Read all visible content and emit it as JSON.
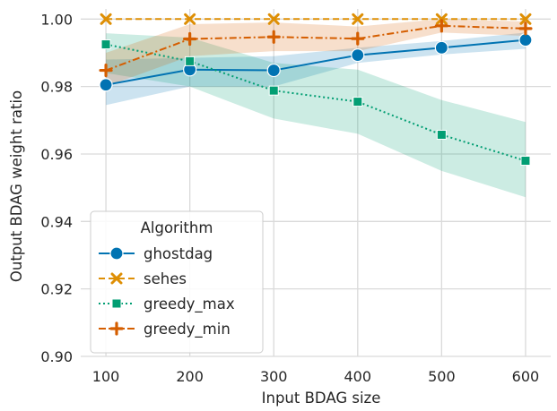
{
  "chart_data": {
    "type": "line",
    "xlabel": "Input BDAG size",
    "ylabel": "Output BDAG weight ratio",
    "x": [
      100,
      200,
      300,
      400,
      500,
      600
    ],
    "xlim": [
      70,
      630
    ],
    "ylim": [
      0.9,
      1.003
    ],
    "xticks": [
      100,
      200,
      300,
      400,
      500,
      600
    ],
    "yticks": [
      0.9,
      0.92,
      0.94,
      0.96,
      0.98,
      1.0
    ],
    "xtick_labels": [
      "100",
      "200",
      "300",
      "400",
      "500",
      "600"
    ],
    "ytick_labels": [
      "0.90",
      "0.92",
      "0.94",
      "0.96",
      "0.98",
      "1.00"
    ],
    "grid": true,
    "legend": {
      "title": "Algorithm",
      "placement": "lower-left"
    },
    "series": [
      {
        "name": "ghostdag",
        "color": "#0173b2",
        "line_style": "solid",
        "marker": "circle",
        "values": [
          0.9805,
          0.985,
          0.9848,
          0.9893,
          0.9915,
          0.9938
        ],
        "ci_low": [
          0.9745,
          0.98,
          0.98,
          0.987,
          0.9895,
          0.9912
        ],
        "ci_high": [
          0.988,
          0.9885,
          0.989,
          0.9915,
          0.9935,
          0.996
        ]
      },
      {
        "name": "sehes",
        "color": "#de8f05",
        "line_style": "dashed",
        "marker": "x",
        "values": [
          1.0,
          1.0,
          1.0,
          1.0,
          1.0,
          1.0
        ],
        "ci_low": [
          1.0,
          1.0,
          1.0,
          1.0,
          1.0,
          1.0
        ],
        "ci_high": [
          1.0,
          1.0,
          1.0,
          1.0,
          1.0,
          1.0
        ]
      },
      {
        "name": "greedy_max",
        "color": "#029e73",
        "line_style": "dotted",
        "marker": "square",
        "values": [
          0.9925,
          0.9875,
          0.9788,
          0.9755,
          0.9657,
          0.958
        ],
        "ci_low": [
          0.984,
          0.98,
          0.9705,
          0.966,
          0.955,
          0.9472
        ],
        "ci_high": [
          0.9958,
          0.9945,
          0.987,
          0.985,
          0.976,
          0.9695
        ]
      },
      {
        "name": "greedy_min",
        "color": "#d55e00",
        "line_style": "dashdot",
        "marker": "plus",
        "values": [
          0.9848,
          0.9941,
          0.9947,
          0.9942,
          0.998,
          0.9972
        ],
        "ci_low": [
          0.98,
          0.989,
          0.9905,
          0.9905,
          0.996,
          0.995
        ],
        "ci_high": [
          0.99,
          0.9985,
          0.999,
          0.9978,
          1.0,
          0.9993
        ]
      }
    ]
  }
}
